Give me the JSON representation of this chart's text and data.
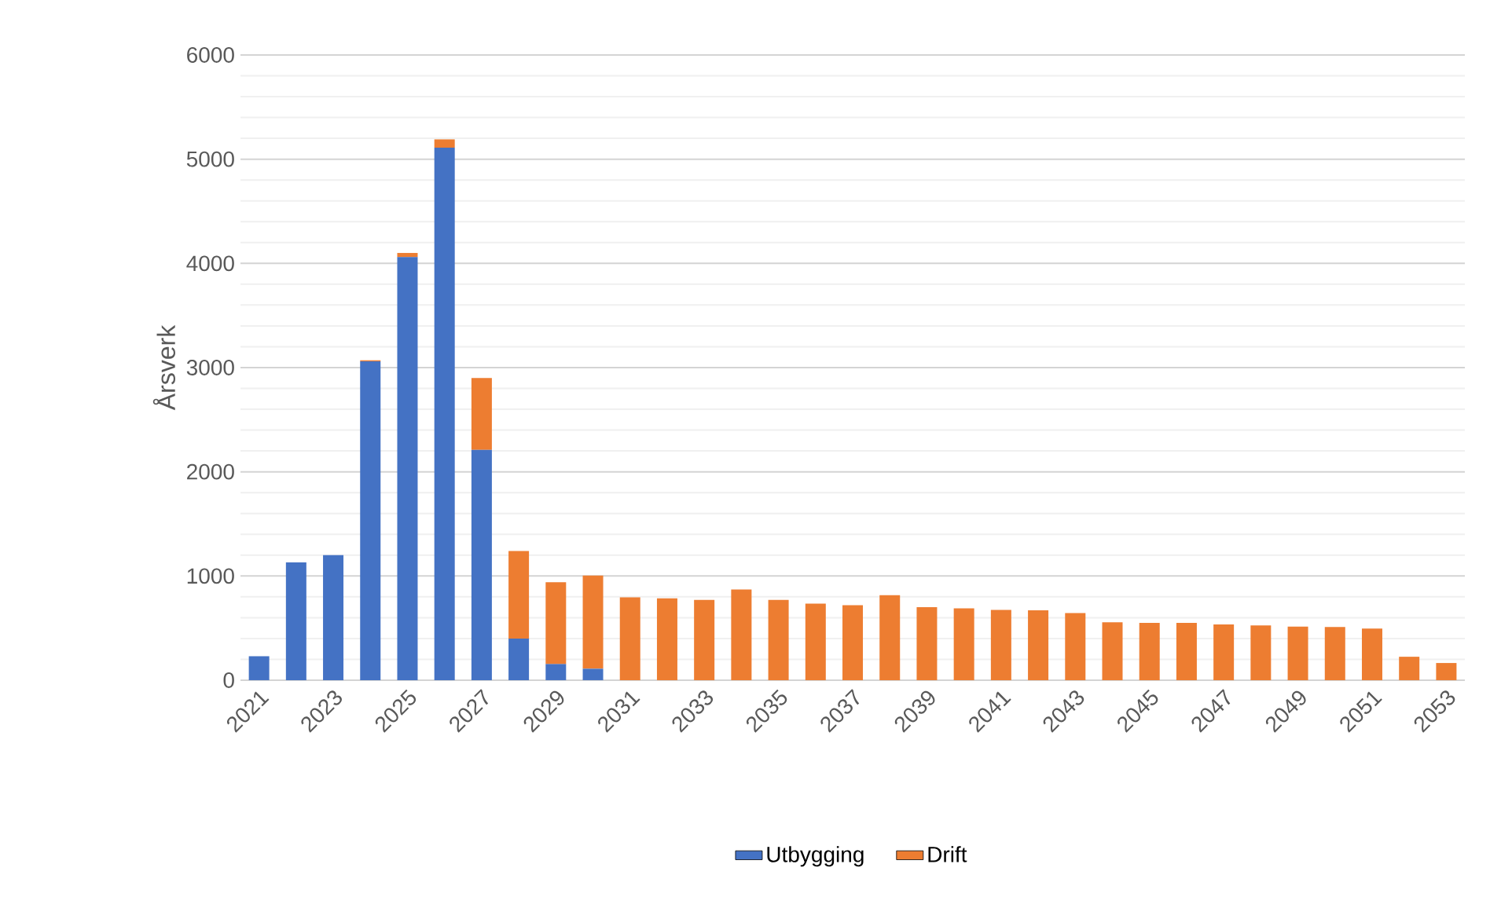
{
  "chart_data": {
    "type": "bar",
    "stacked": true,
    "ylabel": "Årsverk",
    "categories": [
      "2021",
      null,
      "2023",
      null,
      "2025",
      null,
      "2027",
      null,
      "2029",
      null,
      "2031",
      null,
      "2033",
      null,
      "2035",
      null,
      "2037",
      null,
      "2039",
      null,
      "2041",
      null,
      "2043",
      null,
      "2045",
      null,
      "2047",
      null,
      "2049",
      null,
      "2051",
      null,
      "2053"
    ],
    "series": [
      {
        "name": "Utbygging",
        "color": "#4472c4",
        "values": [
          230,
          1130,
          1200,
          3060,
          4060,
          5110,
          2210,
          400,
          155,
          110,
          0,
          0,
          0,
          0,
          0,
          0,
          0,
          0,
          0,
          0,
          0,
          0,
          0,
          0,
          0,
          0,
          0,
          0,
          0,
          0,
          0,
          0,
          0
        ]
      },
      {
        "name": "Drift",
        "color": "#ed7d31",
        "values": [
          0,
          0,
          0,
          10,
          40,
          80,
          690,
          840,
          785,
          895,
          795,
          785,
          770,
          870,
          770,
          735,
          720,
          815,
          700,
          690,
          675,
          670,
          645,
          555,
          550,
          550,
          535,
          525,
          515,
          510,
          495,
          225,
          165
        ]
      }
    ],
    "ylim": [
      0,
      6000
    ],
    "yticks": [
      0,
      1000,
      2000,
      3000,
      4000,
      5000,
      6000
    ],
    "grid": "y",
    "legend": "bottom"
  }
}
